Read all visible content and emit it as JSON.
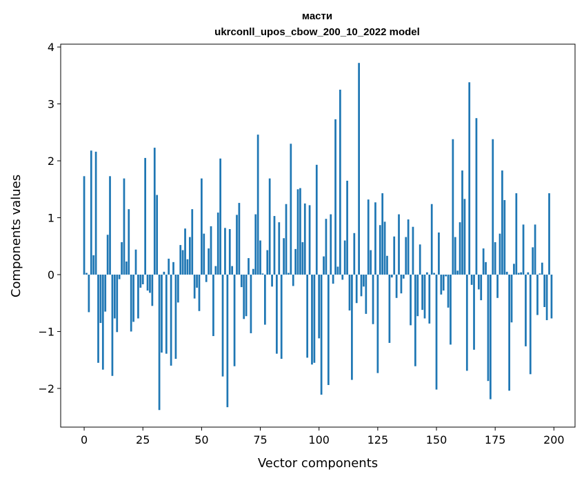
{
  "chart_data": {
    "type": "bar",
    "title_lines": [
      "масти",
      "ukrconll_upos_cbow_200_10_2022 model"
    ],
    "xlabel": "Vector components",
    "ylabel": "Components values",
    "xlim": [
      -10,
      209
    ],
    "ylim": [
      -2.68,
      4.05
    ],
    "xticks": [
      0,
      25,
      50,
      75,
      100,
      125,
      150,
      175,
      200
    ],
    "yticks": [
      -2,
      -1,
      0,
      1,
      2,
      3,
      4
    ],
    "ytick_labels": [
      "−2",
      "−1",
      "0",
      "1",
      "2",
      "3",
      "4"
    ],
    "grid": false,
    "bar_color": "#1f77b4",
    "x": [
      0,
      1,
      2,
      3,
      4,
      5,
      6,
      7,
      8,
      9,
      10,
      11,
      12,
      13,
      14,
      15,
      16,
      17,
      18,
      19,
      20,
      21,
      22,
      23,
      24,
      25,
      26,
      27,
      28,
      29,
      30,
      31,
      32,
      33,
      34,
      35,
      36,
      37,
      38,
      39,
      40,
      41,
      42,
      43,
      44,
      45,
      46,
      47,
      48,
      49,
      50,
      51,
      52,
      53,
      54,
      55,
      56,
      57,
      58,
      59,
      60,
      61,
      62,
      63,
      64,
      65,
      66,
      67,
      68,
      69,
      70,
      71,
      72,
      73,
      74,
      75,
      76,
      77,
      78,
      79,
      80,
      81,
      82,
      83,
      84,
      85,
      86,
      87,
      88,
      89,
      90,
      91,
      92,
      93,
      94,
      95,
      96,
      97,
      98,
      99,
      100,
      101,
      102,
      103,
      104,
      105,
      106,
      107,
      108,
      109,
      110,
      111,
      112,
      113,
      114,
      115,
      116,
      117,
      118,
      119,
      120,
      121,
      122,
      123,
      124,
      125,
      126,
      127,
      128,
      129,
      130,
      131,
      132,
      133,
      134,
      135,
      136,
      137,
      138,
      139,
      140,
      141,
      142,
      143,
      144,
      145,
      146,
      147,
      148,
      149,
      150,
      151,
      152,
      153,
      154,
      155,
      156,
      157,
      158,
      159,
      160,
      161,
      162,
      163,
      164,
      165,
      166,
      167,
      168,
      169,
      170,
      171,
      172,
      173,
      174,
      175,
      176,
      177,
      178,
      179,
      180,
      181,
      182,
      183,
      184,
      185,
      186,
      187,
      188,
      189,
      190,
      191,
      192,
      193,
      194,
      195,
      196,
      197,
      198,
      199
    ],
    "values": [
      1.73,
      0.03,
      -0.66,
      2.18,
      0.34,
      2.16,
      -1.55,
      -0.85,
      -1.67,
      -0.65,
      0.7,
      1.73,
      -1.78,
      -0.77,
      -1.01,
      -0.08,
      0.57,
      1.69,
      0.23,
      1.15,
      -1.0,
      -0.83,
      0.44,
      -0.77,
      -0.23,
      -0.17,
      2.05,
      -0.28,
      -0.32,
      -0.55,
      2.23,
      1.4,
      -2.38,
      -1.37,
      0.05,
      -1.39,
      0.28,
      -1.6,
      0.22,
      -1.48,
      -0.49,
      0.52,
      0.43,
      0.81,
      0.27,
      0.66,
      1.15,
      -0.42,
      -0.23,
      -0.64,
      1.69,
      0.72,
      -0.13,
      0.46,
      0.85,
      -1.08,
      0.15,
      1.09,
      2.04,
      -1.79,
      0.82,
      -2.33,
      0.8,
      0.15,
      -1.61,
      1.05,
      1.26,
      -0.22,
      -0.78,
      -0.73,
      0.29,
      -1.03,
      0.1,
      1.06,
      2.46,
      0.6,
      0.02,
      -0.88,
      0.43,
      1.69,
      -0.21,
      1.03,
      -1.39,
      0.92,
      -1.48,
      0.64,
      1.24,
      0.03,
      2.3,
      -0.2,
      0.45,
      1.5,
      1.52,
      0.57,
      1.25,
      -1.46,
      1.22,
      -1.58,
      -1.55,
      1.93,
      -1.12,
      -2.11,
      0.32,
      0.98,
      -1.94,
      1.06,
      -0.16,
      2.73,
      0.14,
      3.25,
      -0.09,
      0.6,
      1.65,
      -0.63,
      -1.85,
      0.73,
      -0.5,
      3.72,
      -0.38,
      -0.21,
      -0.69,
      1.32,
      0.43,
      -0.87,
      1.27,
      -1.73,
      0.87,
      1.43,
      0.93,
      0.33,
      -1.2,
      -0.05,
      0.67,
      -0.41,
      1.06,
      -0.33,
      -0.07,
      0.66,
      0.97,
      -0.89,
      0.84,
      -1.61,
      -0.73,
      0.53,
      -0.62,
      -0.77,
      0.04,
      -0.86,
      1.24,
      0.03,
      -2.02,
      0.74,
      -0.35,
      -0.28,
      -0.03,
      -0.58,
      -1.23,
      2.38,
      0.66,
      0.07,
      0.92,
      1.83,
      1.33,
      -1.69,
      3.38,
      -0.18,
      -1.32,
      2.75,
      -0.26,
      -0.45,
      0.46,
      0.22,
      -1.87,
      -2.19,
      2.38,
      0.57,
      -0.41,
      0.72,
      1.83,
      1.31,
      0.05,
      -2.04,
      -0.84,
      0.19,
      1.43,
      0.03,
      0.04,
      0.88,
      -1.26,
      0.04,
      -1.75,
      0.48,
      0.88,
      -0.71,
      0.02,
      0.21,
      -0.57,
      -0.8,
      1.43,
      -0.77
    ]
  }
}
